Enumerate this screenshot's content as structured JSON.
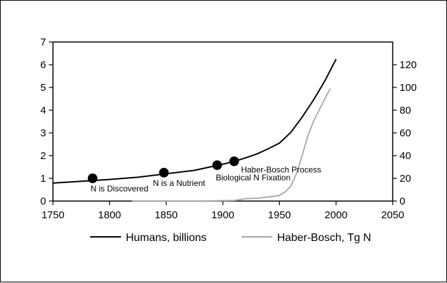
{
  "chart_data": {
    "type": "line",
    "title": "",
    "xlabel": "",
    "ylabel_left": "",
    "ylabel_right": "",
    "xlim": [
      1750,
      2050
    ],
    "ylim_left": [
      0,
      7
    ],
    "ylim_right": [
      0,
      140
    ],
    "x_ticks": [
      1750,
      1800,
      1850,
      1900,
      1950,
      2000,
      2050
    ],
    "y_left_ticks": [
      0,
      1,
      2,
      3,
      4,
      5,
      6,
      7
    ],
    "y_right_ticks": [
      0,
      20,
      40,
      60,
      80,
      100,
      120
    ],
    "grid": false,
    "legend_position": "bottom",
    "series": [
      {
        "name": "Humans, billions",
        "axis": "left",
        "color": "#000000",
        "x": [
          1750,
          1775,
          1800,
          1825,
          1850,
          1875,
          1900,
          1910,
          1920,
          1930,
          1940,
          1950,
          1960,
          1970,
          1980,
          1990,
          2000
        ],
        "y": [
          0.79,
          0.87,
          0.95,
          1.05,
          1.2,
          1.35,
          1.62,
          1.75,
          1.9,
          2.07,
          2.3,
          2.55,
          3.02,
          3.69,
          4.44,
          5.28,
          6.25
        ]
      },
      {
        "name": "Haber-Bosch, Tg N",
        "axis": "right",
        "color": "#a6a6a6",
        "x": [
          1820,
          1850,
          1880,
          1910,
          1920,
          1930,
          1940,
          1950,
          1955,
          1960,
          1965,
          1970,
          1975,
          1980,
          1985,
          1990,
          1995
        ],
        "y": [
          0,
          0,
          0,
          0.5,
          2,
          2.5,
          3.5,
          5,
          8,
          13,
          24,
          40,
          57,
          70,
          80,
          90,
          99
        ]
      }
    ],
    "annotations": [
      {
        "label": "N is Discovered",
        "x": 1785,
        "y": 1.0
      },
      {
        "label": "N is a Nutrient",
        "x": 1848,
        "y": 1.25
      },
      {
        "label": "Biological N Fixation",
        "x": 1895,
        "y": 1.58
      },
      {
        "label": "Haber-Bosch Process",
        "x": 1910,
        "y": 1.75
      }
    ]
  }
}
